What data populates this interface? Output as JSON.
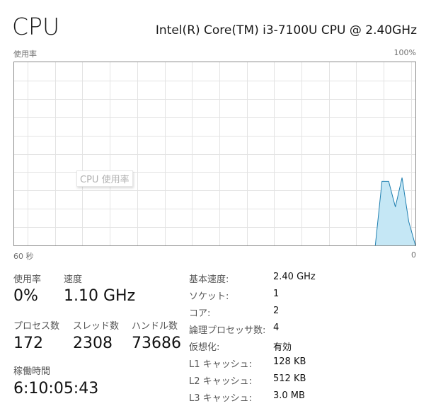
{
  "header": {
    "title": "CPU",
    "model": "Intel(R) Core(TM) i3-7100U CPU @ 2.40GHz"
  },
  "graph": {
    "ylabel": "使用率",
    "ymax_label": "100%",
    "xleft_label": "60 秒",
    "xright_label": "0",
    "tooltip": "CPU 使用率",
    "fill_color": "#c5e7f5",
    "line_color": "#1f7fb0"
  },
  "chart_data": {
    "type": "area",
    "x_seconds_ago": [
      6,
      5,
      4,
      3,
      2,
      1,
      0
    ],
    "values": [
      0,
      35,
      35,
      21,
      37,
      13,
      0
    ],
    "xlim": [
      60,
      0
    ],
    "ylim": [
      0,
      100
    ],
    "grid": true
  },
  "stats": {
    "usage_label": "使用率",
    "usage_value": "0%",
    "speed_label": "速度",
    "speed_value": "1.10 GHz",
    "processes_label": "プロセス数",
    "processes_value": "172",
    "threads_label": "スレッド数",
    "threads_value": "2308",
    "handles_label": "ハンドル数",
    "handles_value": "73686",
    "uptime_label": "稼働時間",
    "uptime_value": "6:10:05:43"
  },
  "specs": [
    {
      "key": "基本速度:",
      "value": "2.40 GHz"
    },
    {
      "key": "ソケット:",
      "value": "1"
    },
    {
      "key": "コア:",
      "value": "2"
    },
    {
      "key": "論理プロセッサ数:",
      "value": "4"
    },
    {
      "key": "仮想化:",
      "value": "有効"
    },
    {
      "key": "L1 キャッシュ:",
      "value": "128 KB"
    },
    {
      "key": "L2 キャッシュ:",
      "value": "512 KB"
    },
    {
      "key": "L3 キャッシュ:",
      "value": "3.0 MB"
    }
  ]
}
